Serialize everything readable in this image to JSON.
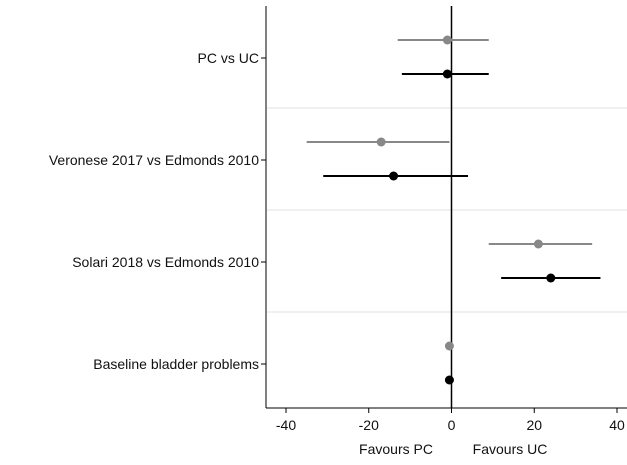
{
  "chart_data": {
    "type": "scatter",
    "xlim": [
      -42,
      42
    ],
    "xticks": [
      -40,
      -20,
      0,
      20,
      40
    ],
    "reference_line": 0,
    "x_annotations": [
      "Favours PC",
      "Favours UC"
    ],
    "groups": [
      {
        "label": "PC vs UC"
      },
      {
        "label": "Veronese 2017 vs Edmonds 2010"
      },
      {
        "label": "Solari 2018 vs Edmonds 2010"
      },
      {
        "label": "Baseline bladder problems"
      }
    ],
    "series": [
      {
        "color": "#888888",
        "points": [
          {
            "group": 0,
            "estimate": -1,
            "lower": -13,
            "upper": 9
          },
          {
            "group": 1,
            "estimate": -17,
            "lower": -35,
            "upper": -0.5
          },
          {
            "group": 2,
            "estimate": 21,
            "lower": 9,
            "upper": 34
          },
          {
            "group": 3,
            "estimate": -0.5,
            "lower": -0.5,
            "upper": -0.5
          }
        ]
      },
      {
        "color": "#000000",
        "points": [
          {
            "group": 0,
            "estimate": -1,
            "lower": -12,
            "upper": 9
          },
          {
            "group": 1,
            "estimate": -14,
            "lower": -31,
            "upper": 4
          },
          {
            "group": 2,
            "estimate": 24,
            "lower": 12,
            "upper": 36
          },
          {
            "group": 3,
            "estimate": -0.5,
            "lower": -0.5,
            "upper": -0.5
          }
        ]
      }
    ],
    "grid": false,
    "group_separators": true,
    "separator_color": "#e0e0e0"
  }
}
